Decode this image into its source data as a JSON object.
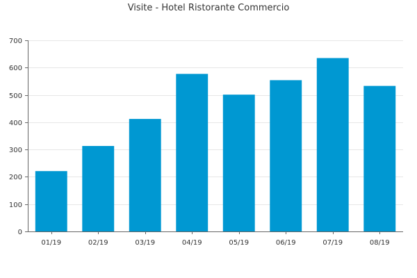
{
  "chart_data": {
    "type": "bar",
    "title": "Visite - Hotel Ristorante Commercio",
    "xlabel": "",
    "ylabel": "",
    "categories": [
      "01/19",
      "02/19",
      "03/19",
      "04/19",
      "05/19",
      "06/19",
      "07/19",
      "08/19"
    ],
    "values": [
      221,
      313,
      412,
      577,
      501,
      554,
      635,
      533
    ],
    "ylim": [
      0,
      700
    ],
    "yticks": [
      0,
      100,
      200,
      300,
      400,
      500,
      600,
      700
    ],
    "grid": true,
    "legend": "none",
    "bar_color": "#0098d2",
    "grid_color": "#e6e6e6",
    "axis_color": "#666666"
  }
}
